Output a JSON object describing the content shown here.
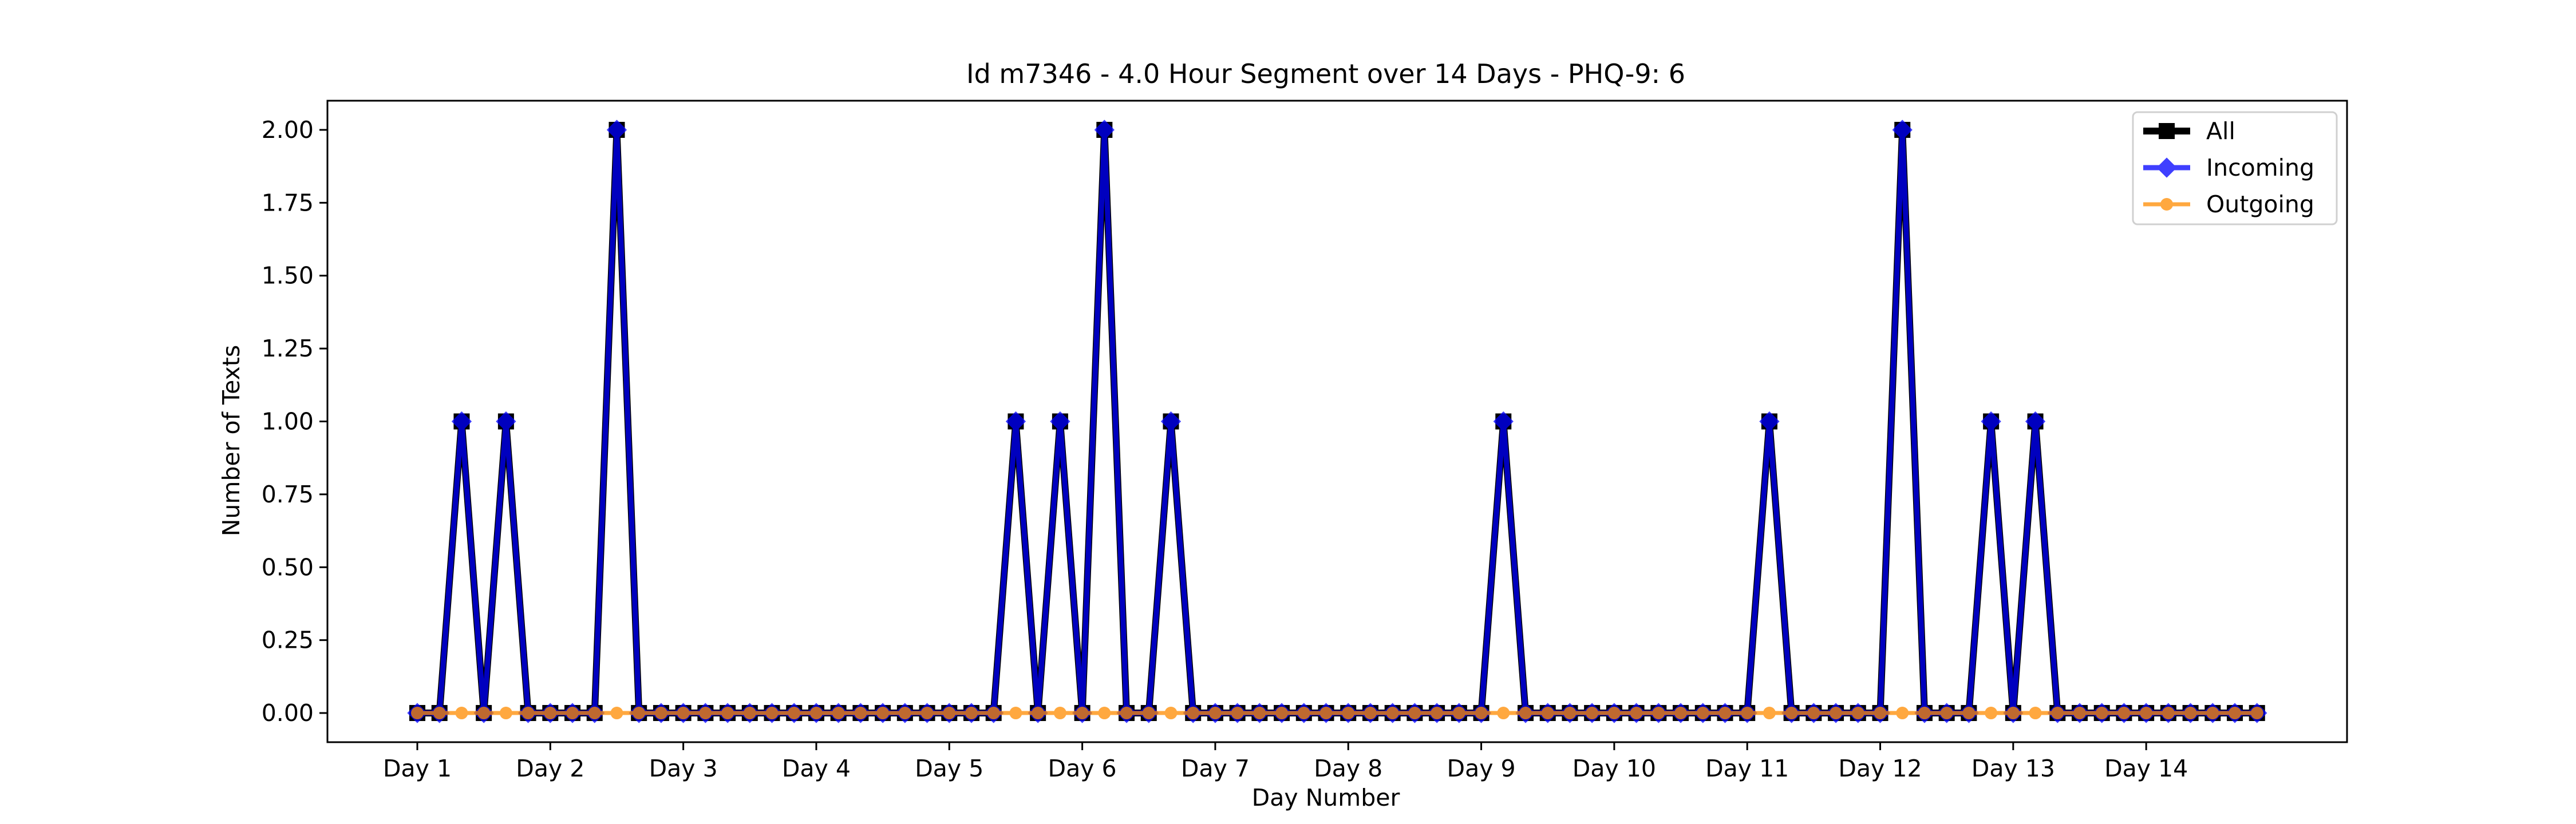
{
  "chart_data": {
    "type": "line",
    "title": "Id m7346 - 4.0 Hour Segment over 14 Days - PHQ-9: 6",
    "xlabel": "Day Number",
    "ylabel": "Number of Texts",
    "ylim": [
      -0.1,
      2.1
    ],
    "yticks": [
      "0.00",
      "0.25",
      "0.50",
      "0.75",
      "1.00",
      "1.25",
      "1.50",
      "1.75",
      "2.00"
    ],
    "xticks": [
      "Day 1",
      "Day 2",
      "Day 3",
      "Day 4",
      "Day 5",
      "Day 6",
      "Day 7",
      "Day 8",
      "Day 9",
      "Day 10",
      "Day 11",
      "Day 12",
      "Day 13",
      "Day 14"
    ],
    "legend_position": "top-right",
    "grid": false,
    "series": [
      {
        "name": "All",
        "color": "#000000",
        "marker": "square",
        "values": [
          0,
          0,
          1,
          0,
          1,
          0,
          0,
          0,
          0,
          2,
          0,
          0,
          0,
          0,
          0,
          0,
          0,
          0,
          0,
          0,
          0,
          0,
          0,
          0,
          0,
          0,
          0,
          1,
          0,
          1,
          0,
          2,
          0,
          0,
          1,
          0,
          0,
          0,
          0,
          0,
          0,
          0,
          0,
          0,
          0,
          0,
          0,
          0,
          0,
          1,
          0,
          0,
          0,
          0,
          0,
          0,
          0,
          0,
          0,
          0,
          0,
          1,
          0,
          0,
          0,
          0,
          0,
          2,
          0,
          0,
          0,
          1,
          0,
          1,
          0,
          0,
          0,
          0,
          0,
          0,
          0,
          0,
          0,
          0
        ]
      },
      {
        "name": "Incoming",
        "color": "#0000ff",
        "marker": "diamond",
        "values": [
          0,
          0,
          1,
          0,
          1,
          0,
          0,
          0,
          0,
          2,
          0,
          0,
          0,
          0,
          0,
          0,
          0,
          0,
          0,
          0,
          0,
          0,
          0,
          0,
          0,
          0,
          0,
          1,
          0,
          1,
          0,
          2,
          0,
          0,
          1,
          0,
          0,
          0,
          0,
          0,
          0,
          0,
          0,
          0,
          0,
          0,
          0,
          0,
          0,
          1,
          0,
          0,
          0,
          0,
          0,
          0,
          0,
          0,
          0,
          0,
          0,
          1,
          0,
          0,
          0,
          0,
          0,
          2,
          0,
          0,
          0,
          1,
          0,
          1,
          0,
          0,
          0,
          0,
          0,
          0,
          0,
          0,
          0,
          0
        ]
      },
      {
        "name": "Outgoing",
        "color": "#ff8c00",
        "marker": "circle",
        "values": [
          0,
          0,
          0,
          0,
          0,
          0,
          0,
          0,
          0,
          0,
          0,
          0,
          0,
          0,
          0,
          0,
          0,
          0,
          0,
          0,
          0,
          0,
          0,
          0,
          0,
          0,
          0,
          0,
          0,
          0,
          0,
          0,
          0,
          0,
          0,
          0,
          0,
          0,
          0,
          0,
          0,
          0,
          0,
          0,
          0,
          0,
          0,
          0,
          0,
          0,
          0,
          0,
          0,
          0,
          0,
          0,
          0,
          0,
          0,
          0,
          0,
          0,
          0,
          0,
          0,
          0,
          0,
          0,
          0,
          0,
          0,
          0,
          0,
          0,
          0,
          0,
          0,
          0,
          0,
          0,
          0,
          0,
          0,
          0
        ]
      }
    ]
  }
}
